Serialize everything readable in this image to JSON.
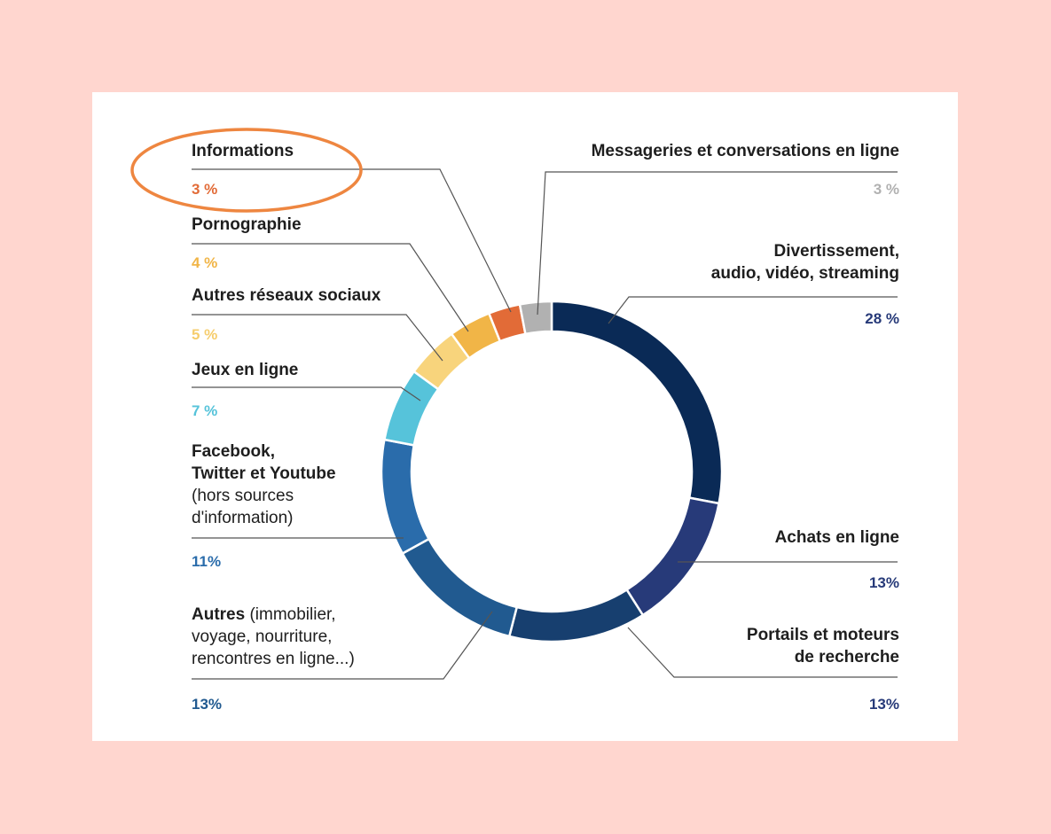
{
  "chart_data": {
    "type": "pie",
    "variant": "donut",
    "start_angle_deg": 0,
    "slices": [
      {
        "label": "Divertissement, audio, vidéo, streaming",
        "value": 28,
        "display": "28 %",
        "color": "#0a2a56"
      },
      {
        "label": "Achats en ligne",
        "value": 13,
        "display": "13%",
        "color": "#273a79"
      },
      {
        "label": "Portails et moteurs de recherche",
        "value": 13,
        "display": "13%",
        "color": "#173f6f"
      },
      {
        "label": "Autres (immobilier, voyage, nourriture, rencontres en ligne...)",
        "value": 13,
        "display": "13%",
        "color": "#215a90"
      },
      {
        "label": "Facebook, Twitter et Youtube (hors sources d'information)",
        "value": 11,
        "display": "11%",
        "color": "#2a6cab"
      },
      {
        "label": "Jeux en ligne",
        "value": 7,
        "display": "7 %",
        "color": "#56c3da"
      },
      {
        "label": "Autres réseaux sociaux",
        "value": 5,
        "display": "5 %",
        "color": "#f8d47c"
      },
      {
        "label": "Pornographie",
        "value": 4,
        "display": "4 %",
        "color": "#f1b547"
      },
      {
        "label": "Informations",
        "value": 3,
        "display": "3 %",
        "color": "#e26b37"
      },
      {
        "label": "Messageries et conversations en ligne",
        "value": 3,
        "display": "3 %",
        "color": "#b1b1b1"
      }
    ],
    "highlight": {
      "label": "Informations",
      "color": "#ee8640"
    },
    "legend": "labels around the chart"
  },
  "labels": {
    "informations": {
      "name": "Informations",
      "pct": "3 %"
    },
    "pornographie": {
      "name": "Pornographie",
      "pct": "4 %"
    },
    "autres_reseaux": {
      "name": "Autres réseaux sociaux",
      "pct": "5 %"
    },
    "jeux": {
      "name": "Jeux en ligne",
      "pct": "7 %"
    },
    "facebook": {
      "line1": "Facebook,",
      "line2": "Twitter et Youtube",
      "line3": "(hors sources",
      "line4": "d'information)",
      "pct": "11%"
    },
    "autres": {
      "bold": "Autres",
      "rest1": " (immobilier,",
      "line2": "voyage, nourriture,",
      "line3": "rencontres en ligne...)",
      "pct": "13%"
    },
    "messageries": {
      "name": "Messageries et conversations en ligne",
      "pct": "3 %"
    },
    "divertissement": {
      "line1": "Divertissement,",
      "line2": "audio, vidéo, streaming",
      "pct": "28 %"
    },
    "achats": {
      "name": "Achats en ligne",
      "pct": "13%"
    },
    "portails": {
      "line1": "Portails et moteurs",
      "line2": "de recherche",
      "pct": "13%"
    }
  },
  "colors": {
    "page_background": "#ffd6cf",
    "card_background": "#ffffff",
    "leader_line": "#555555"
  }
}
